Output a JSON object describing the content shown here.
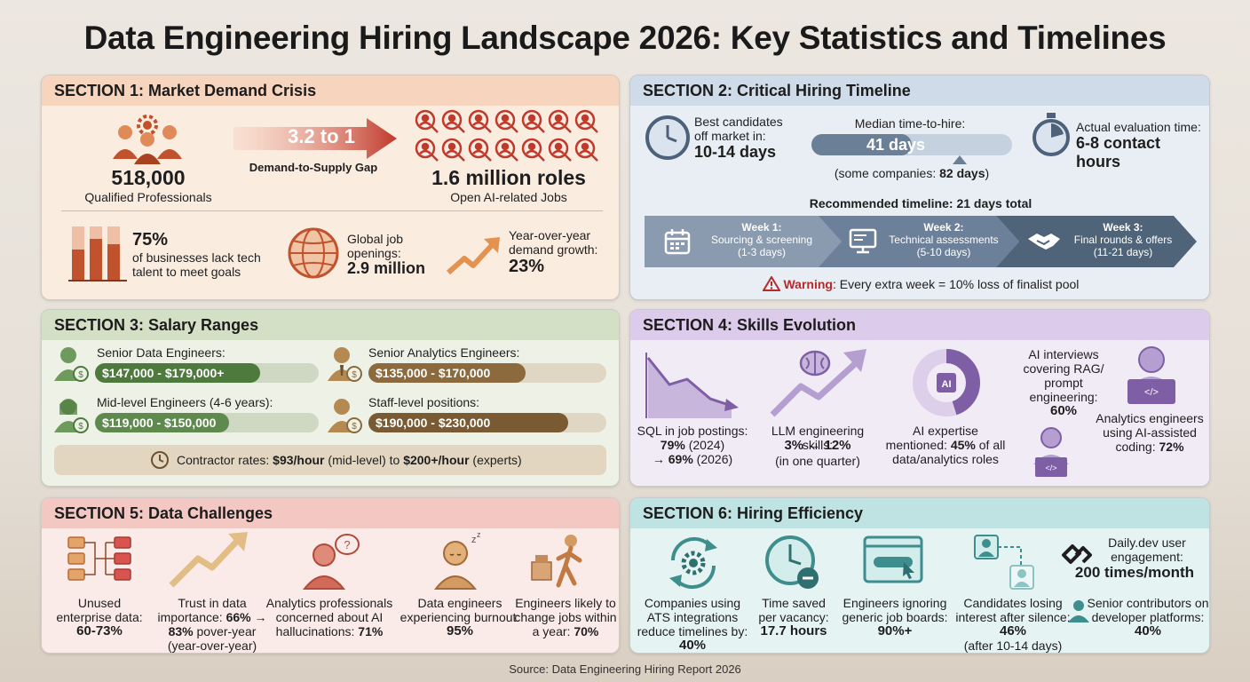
{
  "title": "Data Engineering Hiring Landscape 2026: Key Statistics and Timelines",
  "source": "Source: Data Engineering Hiring Report 2026",
  "colors": {
    "orange": "#c0522e",
    "blue_dark": "#5b6f86",
    "green": "#5f8a4e",
    "bronze": "#8c6a3e",
    "purple": "#7e5fa6",
    "teal": "#3f8e8e"
  },
  "s1": {
    "heading": "SECTION 1: Market Demand Crisis",
    "professionals_value": "518,000",
    "professionals_label": "Qualified Professionals",
    "ratio": "3.2 to 1",
    "ratio_label": "Demand-to-Supply Gap",
    "roles_value": "1.6 million roles",
    "roles_label": "Open AI-related Jobs",
    "lack_value": "75%",
    "lack_label_1": "of businesses lack tech",
    "lack_label_2": "talent to meet goals",
    "global_label_1": "Global job",
    "global_label_2": "openings:",
    "global_value": "2.9 million",
    "growth_label_1": "Year-over-year",
    "growth_label_2": "demand growth:",
    "growth_value": "23%"
  },
  "s2": {
    "heading": "SECTION 2: Critical Hiring Timeline",
    "best_1": "Best candidates",
    "best_2": "off market in:",
    "best_value": "10-14 days",
    "median_label": "Median time-to-hire:",
    "median_value": "41 days",
    "median_fraction": 0.5,
    "some_pre": "(some companies: ",
    "some_value": "82 days",
    "some_post": ")",
    "eval_label": "Actual evaluation time:",
    "eval_value": "6-8 contact hours",
    "recommended": "Recommended timeline: 21 days total",
    "weeks": [
      {
        "title": "Week 1:",
        "desc": "Sourcing & screening",
        "range": "(1-3 days)"
      },
      {
        "title": "Week 2:",
        "desc": "Technical assessments",
        "range": "(5-10 days)"
      },
      {
        "title": "Week 3:",
        "desc": "Final rounds & offers",
        "range": "(11-21 days)"
      }
    ],
    "warning_label": "Warning",
    "warning_text": ": Every extra week = 10% loss of finalist pool"
  },
  "s3": {
    "heading": "SECTION 3: Salary Ranges",
    "senior_label": "Senior Data Engineers:",
    "senior_value": "$147,000 - $179,000+",
    "senior_fraction": 0.74,
    "mid_label": "Mid-level Engineers (4-6 years):",
    "mid_value": "$119,000 - $150,000",
    "mid_fraction": 0.6,
    "analytics_label": "Senior Analytics Engineers:",
    "analytics_value": "$135,000 - $170,000",
    "analytics_fraction": 0.66,
    "staff_label": "Staff-level positions:",
    "staff_value": "$190,000 - $230,000",
    "staff_fraction": 0.84,
    "contractor_pre": "Contractor rates: ",
    "contractor_mid_value": "$93/hour",
    "contractor_mid_text": " (mid-level) to ",
    "contractor_expert_value": "$200+/hour",
    "contractor_post": " (experts)"
  },
  "s4": {
    "heading": "SECTION 4: Skills Evolution",
    "sql_label": "SQL in job postings:",
    "sql_2024_value": "79%",
    "sql_2024_year": " (2024)",
    "sql_2026_pre": "→ ",
    "sql_2026_value": "69%",
    "sql_2026_year": " (2026)",
    "llm_label": "LLM engineering skills:",
    "llm_value": "3% → 12%",
    "llm_note": "(in one quarter)",
    "ai_icon_text": "AI",
    "ai_label": "AI expertise",
    "ai_mid_pre": "mentioned: ",
    "ai_value": "45%",
    "ai_mid_post": " of all",
    "ai_label_2": "data/analytics roles",
    "ai_fraction": 0.45,
    "interviews_1": "AI interviews",
    "interviews_2": "covering RAG/",
    "interviews_3": "prompt",
    "interviews_4": "engineering:",
    "interviews_value": "60%",
    "code_icon_text": "</>",
    "analytics_1": "Analytics engineers",
    "analytics_2": "using AI-assisted",
    "analytics_3": "coding: ",
    "analytics_value": "72%"
  },
  "s5": {
    "heading": "SECTION 5: Data Challenges",
    "unused_1": "Unused",
    "unused_2": "enterprise data:",
    "unused_value": "60-73%",
    "trust_1": "Trust in data",
    "trust_2": "importance: ",
    "trust_from": "66%",
    "trust_arrow": " →",
    "trust_to": "83%",
    "trust_3": " pover-year",
    "trust_4": "(year-over-year)",
    "concern_1": "Analytics professionals",
    "concern_2": "concerned about AI",
    "concern_3": "hallucinations: ",
    "concern_value": "71%",
    "burnout_1": "Data engineers",
    "burnout_2": "experiencing burnout:",
    "burnout_value": "95%",
    "change_1": "Engineers likely to",
    "change_2": "change jobs within",
    "change_3": "a year: ",
    "change_value": "70%"
  },
  "s6": {
    "heading": "SECTION 6: Hiring Efficiency",
    "ats_1": "Companies using",
    "ats_2": "ATS integrations",
    "ats_3": "reduce timelines by:",
    "ats_value": "40%",
    "time_1": "Time saved",
    "time_2": "per vacancy:",
    "time_value": "17.7 hours",
    "boards_1": "Engineers ignoring",
    "boards_2": "generic job boards:",
    "boards_value": "90%+",
    "silence_1": "Candidates losing",
    "silence_2": "interest after silence:",
    "silence_value": "46%",
    "silence_note": "(after 10-14 days)",
    "dailydev_1": "Daily.dev user",
    "dailydev_2": "engagement:",
    "dailydev_value": "200 times/month",
    "senior_1": "Senior contributors on",
    "senior_2": "developer platforms:",
    "senior_value": "40%"
  }
}
